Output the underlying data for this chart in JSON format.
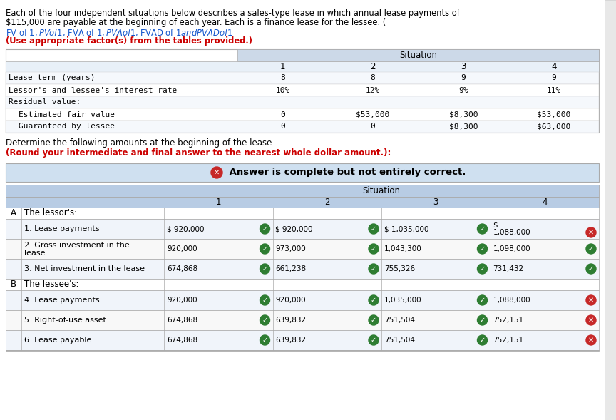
{
  "intro_line1": "Each of the four independent situations below describes a sales-type lease in which annual lease payments of",
  "intro_line2": "$115,000 are payable at the beginning of each year. Each is a finance lease for the lessee. (",
  "intro_links": "FV of $1, PV of $1, FVA of $1, PVA of $1, FVAD of $1 and PVAD of $1",
  "intro_close_paren": ") ",
  "intro_bold": "(Use appropriate factor(s) from the tables provided.)",
  "sit_cols": [
    "1",
    "2",
    "3",
    "4"
  ],
  "top_table_rows": [
    [
      "Lease term (years)",
      "8",
      "8",
      "9",
      "9"
    ],
    [
      "Lessor's and lessee's interest rate",
      "10%",
      "12%",
      "9%",
      "11%"
    ],
    [
      "Residual value:",
      "",
      "",
      "",
      ""
    ],
    [
      "   Estimated fair value",
      "0",
      "$53,000",
      "$8,300",
      "$53,000"
    ],
    [
      "   Guaranteed by lessee",
      "0",
      "0",
      "$8,300",
      "$63,000"
    ]
  ],
  "determine_text": "Determine the following amounts at the beginning of the lease ",
  "determine_bold": "(Round your intermediate and final answer to the nearest whole dollar amount.):",
  "answer_banner_bold": "Answer is complete but not entirely correct.",
  "bottom_sit_cols": [
    "1",
    "2",
    "3",
    "4"
  ],
  "section_a_label": "A",
  "section_a_title": "The lessor's:",
  "section_b_label": "B",
  "section_b_title": "The lessee's:",
  "rows": [
    {
      "num": "1.",
      "label": "Lease payments",
      "label2": "",
      "values": [
        "$ 920,000",
        "$ 920,000",
        "$ 1,035,000",
        "$ 1,088,000"
      ],
      "val4_two_line": true,
      "icons": [
        "green_check",
        "green_check",
        "green_check",
        "red_x"
      ]
    },
    {
      "num": "2.",
      "label": "Gross investment in the",
      "label2": "lease",
      "values": [
        "920,000",
        "973,000",
        "1,043,300",
        "1,098,000"
      ],
      "val4_two_line": false,
      "icons": [
        "green_check",
        "green_check",
        "green_check",
        "green_check"
      ]
    },
    {
      "num": "3.",
      "label": "Net investment in the lease",
      "label2": "",
      "values": [
        "674,868",
        "661,238",
        "755,326",
        "731,432"
      ],
      "val4_two_line": false,
      "icons": [
        "green_check",
        "green_check",
        "green_check",
        "green_check"
      ]
    },
    {
      "num": "4.",
      "label": "Lease payments",
      "label2": "",
      "values": [
        "920,000",
        "920,000",
        "1,035,000",
        "1,088,000"
      ],
      "val4_two_line": false,
      "icons": [
        "green_check",
        "green_check",
        "green_check",
        "red_x"
      ]
    },
    {
      "num": "5.",
      "label": "Right-of-use asset",
      "label2": "",
      "values": [
        "674,868",
        "639,832",
        "751,504",
        "752,151"
      ],
      "val4_two_line": false,
      "icons": [
        "green_check",
        "green_check",
        "green_check",
        "red_x"
      ]
    },
    {
      "num": "6.",
      "label": "Lease payable",
      "label2": "",
      "values": [
        "674,868",
        "639,832",
        "751,504",
        "752,151"
      ],
      "val4_two_line": false,
      "icons": [
        "green_check",
        "green_check",
        "green_check",
        "red_x"
      ]
    }
  ],
  "bg_color": "#ffffff",
  "text_color": "#000000",
  "link_color": "#1155cc",
  "bold_color": "#cc0000",
  "table_header_bg": "#ccd9e8",
  "table_sit_header_bg": "#b8cce4",
  "answer_banner_bg": "#cfe0f0",
  "green_check_color": "#2e7d32",
  "red_x_color": "#c62828"
}
